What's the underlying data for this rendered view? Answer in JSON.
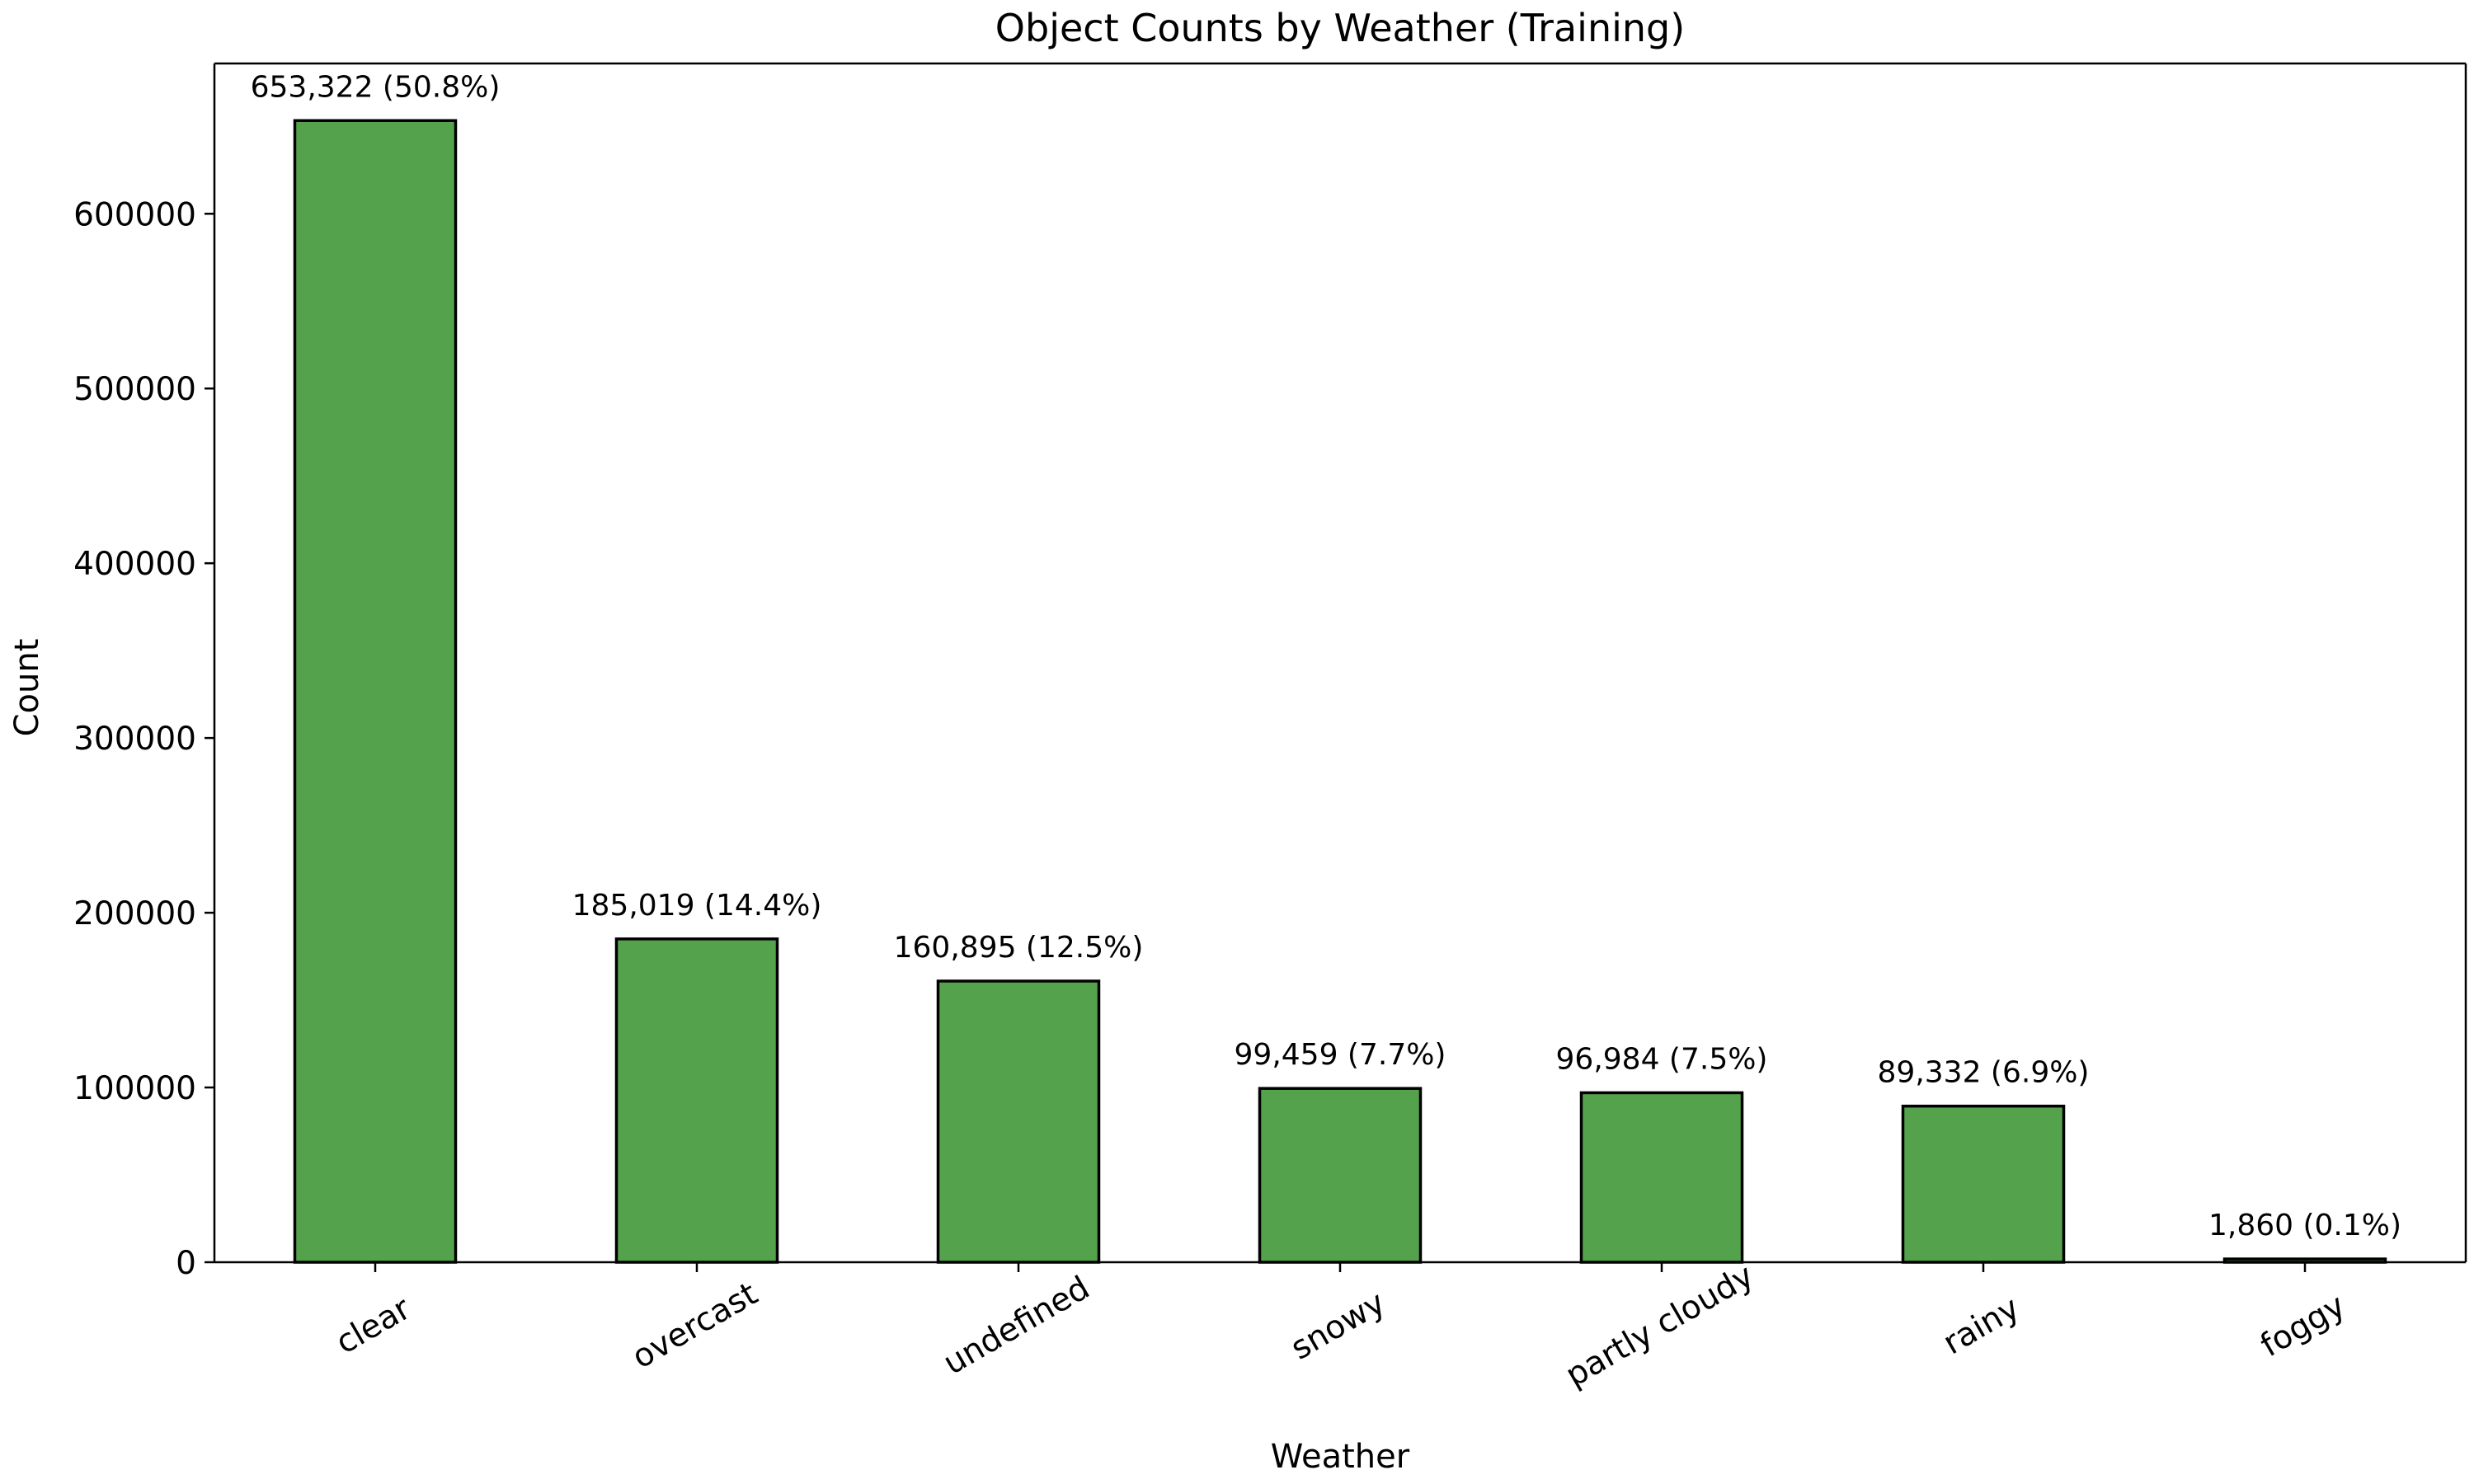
{
  "chart_data": {
    "type": "bar",
    "title": "Object Counts by Weather (Training)",
    "xlabel": "Weather",
    "ylabel": "Count",
    "categories": [
      "clear",
      "overcast",
      "undefined",
      "snowy",
      "partly cloudy",
      "rainy",
      "foggy"
    ],
    "values": [
      653322,
      185019,
      160895,
      99459,
      96984,
      89332,
      1860
    ],
    "data_labels": [
      "653,322 (50.8%)",
      "185,019 (14.4%)",
      "160,895 (12.5%)",
      "99,459 (7.7%)",
      "96,984 (7.5%)",
      "89,332 (6.9%)",
      "1,860 (0.1%)"
    ],
    "ylim": [
      0,
      686000
    ],
    "yticks": [
      0,
      100000,
      200000,
      300000,
      400000,
      500000,
      600000
    ],
    "ytick_labels": [
      "0",
      "100000",
      "200000",
      "300000",
      "400000",
      "500000",
      "600000"
    ],
    "grid": false,
    "legend": "none",
    "bar_color": "#55a24c",
    "edge_color": "#000000",
    "x_tick_rotation_deg": -30
  }
}
